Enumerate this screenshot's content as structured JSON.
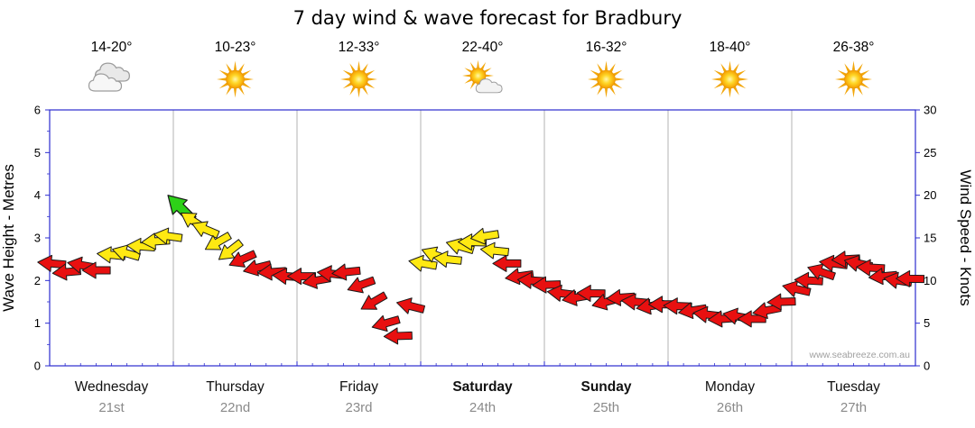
{
  "title": "7 day wind & wave forecast for Bradbury",
  "watermark": "www.seabreeze.com.au",
  "colors": {
    "red": "#e81010",
    "yellow": "#ffe912",
    "green": "#2dd118",
    "axis": "#2b2bcf",
    "grid": "#b3b3b3",
    "date_label": "#8a8a8a",
    "watermark": "#a0a0a0",
    "sun_ray": "#f2a60a",
    "cloud_fill": "#f2f2f2",
    "cloud_stroke": "#9c9c9c"
  },
  "days": [
    {
      "name": "Wednesday",
      "date": "21st",
      "temp": "14-20°",
      "icon": "clouds",
      "weekend": false
    },
    {
      "name": "Thursday",
      "date": "22nd",
      "temp": "10-23°",
      "icon": "sun",
      "weekend": false
    },
    {
      "name": "Friday",
      "date": "23rd",
      "temp": "12-33°",
      "icon": "sun",
      "weekend": false
    },
    {
      "name": "Saturday",
      "date": "24th",
      "temp": "22-40°",
      "icon": "sun-cloud",
      "weekend": true
    },
    {
      "name": "Sunday",
      "date": "25th",
      "temp": "16-32°",
      "icon": "sun",
      "weekend": true
    },
    {
      "name": "Monday",
      "date": "26th",
      "temp": "18-40°",
      "icon": "sun",
      "weekend": false
    },
    {
      "name": "Tuesday",
      "date": "27th",
      "temp": "26-38°",
      "icon": "sun",
      "weekend": false
    }
  ],
  "axes": {
    "left": {
      "title": "Wave Height - Metres",
      "ticks": [
        0,
        1,
        2,
        3,
        4,
        5,
        6
      ],
      "max": 6
    },
    "right": {
      "title": "Wind Speed - Knots",
      "ticks": [
        0,
        5,
        10,
        15,
        20,
        25,
        30
      ],
      "max": 30
    }
  },
  "chart_data": {
    "type": "scatter",
    "title": "7 day wind & wave forecast for Bradbury",
    "x_categories": [
      "Wednesday 21st",
      "Thursday 22nd",
      "Friday 23rd",
      "Saturday 24th",
      "Sunday 25th",
      "Monday 26th",
      "Tuesday 27th"
    ],
    "y_left": {
      "label": "Wave Height - Metres",
      "range": [
        0,
        6
      ]
    },
    "y_right": {
      "label": "Wind Speed - Knots",
      "range": [
        0,
        30
      ]
    },
    "series_name": "Wind speed (knots) shown as colored direction arrows",
    "points": [
      {
        "d": 0,
        "f": 0.02,
        "k": 12,
        "c": "red",
        "r": 185
      },
      {
        "d": 0,
        "f": 0.14,
        "k": 11,
        "c": "red",
        "r": 175
      },
      {
        "d": 0,
        "f": 0.26,
        "k": 11.8,
        "c": "red",
        "r": 190
      },
      {
        "d": 0,
        "f": 0.38,
        "k": 11.2,
        "c": "red",
        "r": 180
      },
      {
        "d": 0,
        "f": 0.5,
        "k": 13,
        "c": "yellow",
        "r": 185
      },
      {
        "d": 0,
        "f": 0.62,
        "k": 13.2,
        "c": "yellow",
        "r": 196
      },
      {
        "d": 0,
        "f": 0.74,
        "k": 14,
        "c": "yellow",
        "r": 184
      },
      {
        "d": 0,
        "f": 0.86,
        "k": 14.6,
        "c": "yellow",
        "r": 176
      },
      {
        "d": 0,
        "f": 0.96,
        "k": 15.2,
        "c": "yellow",
        "r": 188
      },
      {
        "d": 1,
        "f": 0.06,
        "k": 18.5,
        "c": "green",
        "r": 225
      },
      {
        "d": 1,
        "f": 0.16,
        "k": 17,
        "c": "yellow",
        "r": 213
      },
      {
        "d": 1,
        "f": 0.26,
        "k": 16,
        "c": "yellow",
        "r": 203
      },
      {
        "d": 1,
        "f": 0.36,
        "k": 14.5,
        "c": "yellow",
        "r": 150
      },
      {
        "d": 1,
        "f": 0.46,
        "k": 13.5,
        "c": "yellow",
        "r": 142
      },
      {
        "d": 1,
        "f": 0.56,
        "k": 12.5,
        "c": "red",
        "r": 156
      },
      {
        "d": 1,
        "f": 0.68,
        "k": 11.5,
        "c": "red",
        "r": 166
      },
      {
        "d": 1,
        "f": 0.8,
        "k": 11,
        "c": "red",
        "r": 176
      },
      {
        "d": 1,
        "f": 0.92,
        "k": 10.5,
        "c": "red",
        "r": 184
      },
      {
        "d": 2,
        "f": 0.04,
        "k": 10.5,
        "c": "red",
        "r": 180
      },
      {
        "d": 2,
        "f": 0.16,
        "k": 10,
        "c": "red",
        "r": 170
      },
      {
        "d": 2,
        "f": 0.28,
        "k": 10.8,
        "c": "red",
        "r": 186
      },
      {
        "d": 2,
        "f": 0.4,
        "k": 11,
        "c": "red",
        "r": 174
      },
      {
        "d": 2,
        "f": 0.52,
        "k": 9.5,
        "c": "red",
        "r": 160
      },
      {
        "d": 2,
        "f": 0.62,
        "k": 7.5,
        "c": "red",
        "r": 150
      },
      {
        "d": 2,
        "f": 0.72,
        "k": 5,
        "c": "red",
        "r": 164
      },
      {
        "d": 2,
        "f": 0.82,
        "k": 3.5,
        "c": "red",
        "r": 178
      },
      {
        "d": 2,
        "f": 0.92,
        "k": 7,
        "c": "red",
        "r": 194
      },
      {
        "d": 3,
        "f": 0.02,
        "k": 12,
        "c": "yellow",
        "r": 190
      },
      {
        "d": 3,
        "f": 0.12,
        "k": 13,
        "c": "yellow",
        "r": 201
      },
      {
        "d": 3,
        "f": 0.22,
        "k": 12.5,
        "c": "yellow",
        "r": 186
      },
      {
        "d": 3,
        "f": 0.32,
        "k": 14,
        "c": "yellow",
        "r": 196
      },
      {
        "d": 3,
        "f": 0.42,
        "k": 14.5,
        "c": "yellow",
        "r": 181
      },
      {
        "d": 3,
        "f": 0.52,
        "k": 15.2,
        "c": "yellow",
        "r": 171
      },
      {
        "d": 3,
        "f": 0.6,
        "k": 13.5,
        "c": "yellow",
        "r": 186
      },
      {
        "d": 3,
        "f": 0.7,
        "k": 12,
        "c": "red",
        "r": 180
      },
      {
        "d": 3,
        "f": 0.8,
        "k": 10.5,
        "c": "red",
        "r": 172
      },
      {
        "d": 3,
        "f": 0.9,
        "k": 10,
        "c": "red",
        "r": 183
      },
      {
        "d": 4,
        "f": 0.02,
        "k": 9.5,
        "c": "red",
        "r": 178
      },
      {
        "d": 4,
        "f": 0.14,
        "k": 8.5,
        "c": "red",
        "r": 187
      },
      {
        "d": 4,
        "f": 0.26,
        "k": 8,
        "c": "red",
        "r": 170
      },
      {
        "d": 4,
        "f": 0.38,
        "k": 8.5,
        "c": "red",
        "r": 181
      },
      {
        "d": 4,
        "f": 0.5,
        "k": 7.5,
        "c": "red",
        "r": 165
      },
      {
        "d": 4,
        "f": 0.62,
        "k": 8,
        "c": "red",
        "r": 176
      },
      {
        "d": 4,
        "f": 0.74,
        "k": 7.5,
        "c": "red",
        "r": 185
      },
      {
        "d": 4,
        "f": 0.86,
        "k": 7,
        "c": "red",
        "r": 171
      },
      {
        "d": 4,
        "f": 0.96,
        "k": 7.2,
        "c": "red",
        "r": 180
      },
      {
        "d": 5,
        "f": 0.08,
        "k": 7,
        "c": "red",
        "r": 182
      },
      {
        "d": 5,
        "f": 0.2,
        "k": 6.5,
        "c": "red",
        "r": 171
      },
      {
        "d": 5,
        "f": 0.32,
        "k": 6,
        "c": "red",
        "r": 187
      },
      {
        "d": 5,
        "f": 0.44,
        "k": 5.5,
        "c": "red",
        "r": 176
      },
      {
        "d": 5,
        "f": 0.56,
        "k": 5.8,
        "c": "red",
        "r": 191
      },
      {
        "d": 5,
        "f": 0.68,
        "k": 5.5,
        "c": "red",
        "r": 180
      },
      {
        "d": 5,
        "f": 0.8,
        "k": 6.5,
        "c": "red",
        "r": 169
      },
      {
        "d": 5,
        "f": 0.92,
        "k": 7.5,
        "c": "red",
        "r": 178
      },
      {
        "d": 6,
        "f": 0.04,
        "k": 9,
        "c": "red",
        "r": 193
      },
      {
        "d": 6,
        "f": 0.14,
        "k": 10,
        "c": "red",
        "r": 183
      },
      {
        "d": 6,
        "f": 0.24,
        "k": 11,
        "c": "red",
        "r": 199
      },
      {
        "d": 6,
        "f": 0.34,
        "k": 12,
        "c": "red",
        "r": 187
      },
      {
        "d": 6,
        "f": 0.44,
        "k": 12.5,
        "c": "red",
        "r": 177
      },
      {
        "d": 6,
        "f": 0.54,
        "k": 12,
        "c": "red",
        "r": 192
      },
      {
        "d": 6,
        "f": 0.64,
        "k": 11.5,
        "c": "red",
        "r": 183
      },
      {
        "d": 6,
        "f": 0.74,
        "k": 10.5,
        "c": "red",
        "r": 175
      },
      {
        "d": 6,
        "f": 0.86,
        "k": 10,
        "c": "red",
        "r": 189
      },
      {
        "d": 6,
        "f": 0.96,
        "k": 10.2,
        "c": "red",
        "r": 181
      }
    ]
  }
}
